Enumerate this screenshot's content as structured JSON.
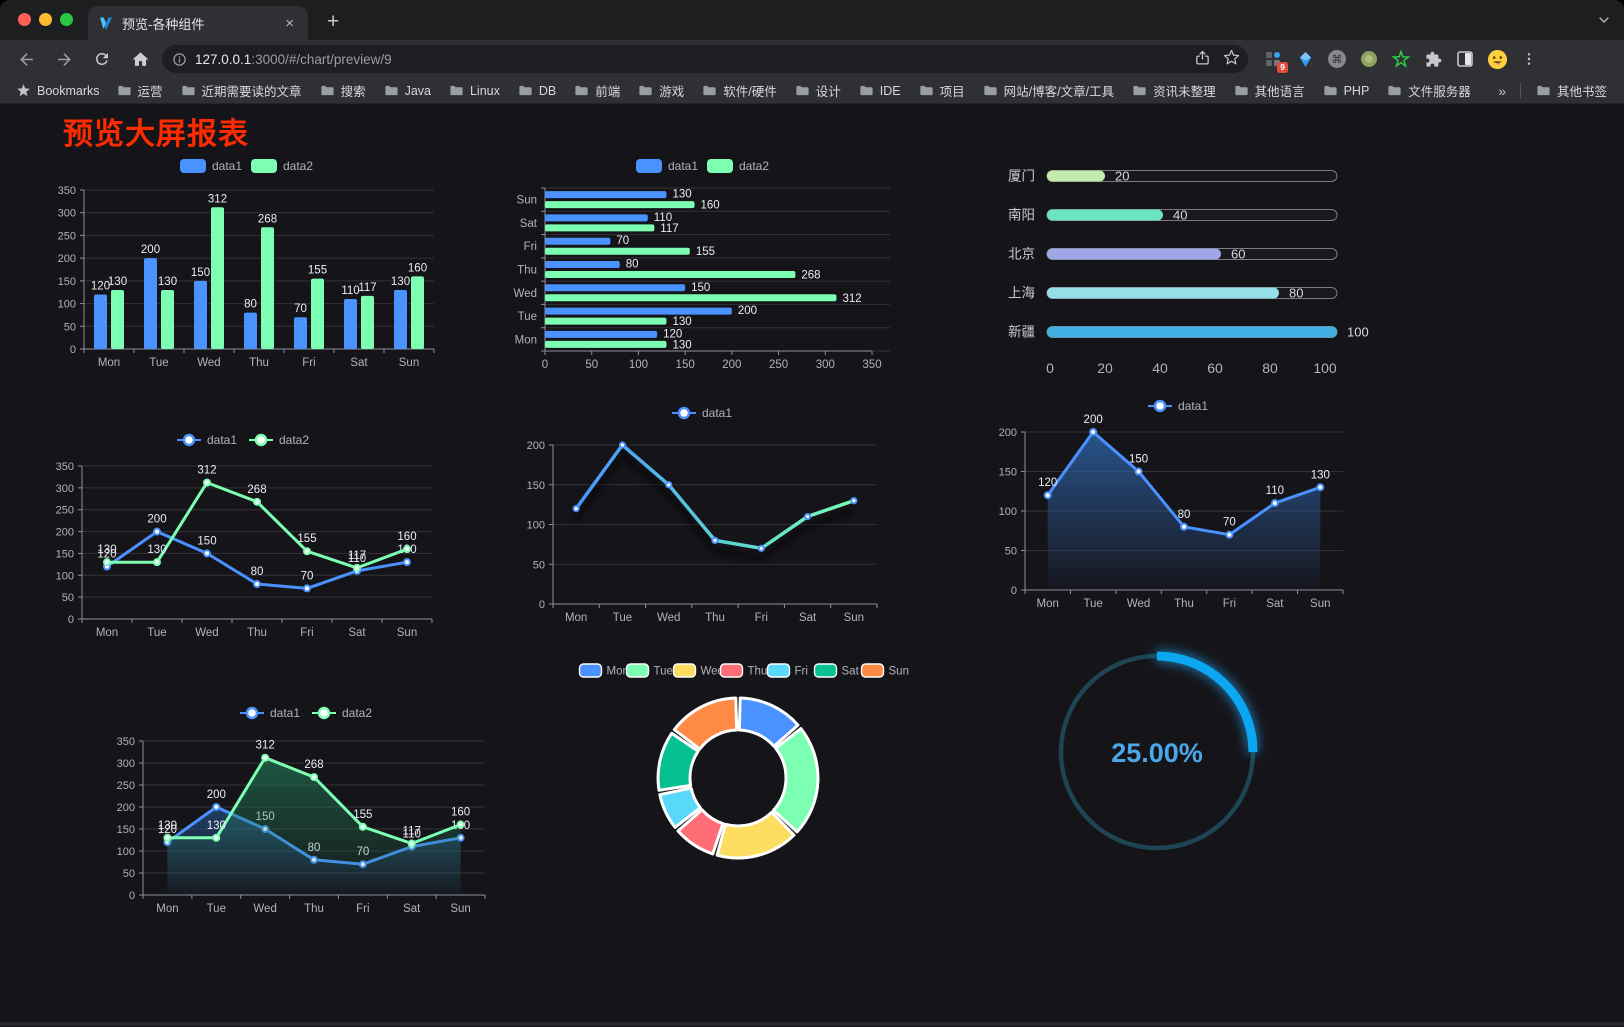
{
  "browser": {
    "tab_title": "预览-各种组件",
    "tab_close_glyph": "×",
    "new_tab_glyph": "+",
    "url": {
      "host": "127.0.0.1",
      "rest": ":3000/#/chart/preview/9"
    },
    "extensions_badge": "9",
    "bookmarks_bar": {
      "leading_label": "Bookmarks",
      "folders": [
        "运营",
        "近期需要读的文章",
        "搜索",
        "Java",
        "Linux",
        "DB",
        "前端",
        "游戏",
        "软件/硬件",
        "设计",
        "IDE",
        "项目",
        "网站/博客/文章/工具",
        "资讯未整理",
        "其他语言",
        "PHP",
        "文件服务器"
      ],
      "overflow_glyph": "»",
      "other_bookmarks_label": "其他书签"
    }
  },
  "page": {
    "title": "预览大屏报表",
    "title_color": "#fe2b00"
  },
  "theme": {
    "axis_label_color": "#b2b2c0",
    "axis_line_color": "#8f8f9e",
    "split_line_color": "rgba(255,255,255,0.13)",
    "value_label_color": "#ececf4",
    "data1_color": "#4992ff",
    "data2_color": "#7cffb2"
  },
  "chart_data": [
    {
      "type": "bar",
      "categories": [
        "Mon",
        "Tue",
        "Wed",
        "Thu",
        "Fri",
        "Sat",
        "Sun"
      ],
      "series": [
        {
          "name": "data1",
          "color": "#4992ff",
          "values": [
            120,
            200,
            150,
            80,
            70,
            110,
            130
          ]
        },
        {
          "name": "data2",
          "color": "#7cffb2",
          "values": [
            130,
            130,
            312,
            268,
            155,
            117,
            160
          ]
        }
      ],
      "ylim": [
        0,
        350
      ],
      "ytick_step": 50,
      "legend_position": "top",
      "grid": true
    },
    {
      "type": "bar-horizontal",
      "categories": [
        "Mon",
        "Tue",
        "Wed",
        "Thu",
        "Fri",
        "Sat",
        "Sun"
      ],
      "series": [
        {
          "name": "data1",
          "color": "#4992ff",
          "values": [
            120,
            200,
            150,
            80,
            70,
            110,
            130
          ]
        },
        {
          "name": "data2",
          "color": "#7cffb2",
          "values": [
            130,
            130,
            312,
            268,
            155,
            117,
            160
          ]
        }
      ],
      "xlim": [
        0,
        350
      ],
      "xticks": [
        0,
        50,
        100,
        150,
        200,
        250,
        300,
        350
      ],
      "legend_position": "top",
      "grid": true
    },
    {
      "type": "bar-pill",
      "rows": [
        {
          "label": "厦门",
          "value": 20,
          "color": "#c4ebad"
        },
        {
          "label": "南阳",
          "value": 40,
          "color": "#6be6c1"
        },
        {
          "label": "北京",
          "value": 60,
          "color": "#a0a7e6"
        },
        {
          "label": "上海",
          "value": 80,
          "color": "#96dee8"
        },
        {
          "label": "新疆",
          "value": 100,
          "color": "#3fb1e3"
        }
      ],
      "xlim": [
        0,
        100
      ],
      "xticks": [
        0,
        20,
        40,
        60,
        80,
        100
      ]
    },
    {
      "type": "line",
      "categories": [
        "Mon",
        "Tue",
        "Wed",
        "Thu",
        "Fri",
        "Sat",
        "Sun"
      ],
      "series": [
        {
          "name": "data1",
          "color": "#4992ff",
          "values": [
            120,
            200,
            150,
            80,
            70,
            110,
            130
          ]
        },
        {
          "name": "data2",
          "color": "#7cffb2",
          "values": [
            130,
            130,
            312,
            268,
            155,
            117,
            160
          ]
        }
      ],
      "ylim": [
        0,
        350
      ],
      "ytick_step": 50,
      "point_labels": true,
      "legend_position": "top"
    },
    {
      "type": "line",
      "categories": [
        "Mon",
        "Tue",
        "Wed",
        "Thu",
        "Fri",
        "Sat",
        "Sun"
      ],
      "series": [
        {
          "name": "data1",
          "gradient": [
            "#4992ff",
            "#58cfd8",
            "#7cffb2"
          ],
          "color": "#4992ff",
          "values": [
            120,
            200,
            150,
            80,
            70,
            110,
            130
          ]
        }
      ],
      "ylim": [
        0,
        200
      ],
      "ytick_step": 50,
      "point_labels": false,
      "shadow": true,
      "legend_position": "top"
    },
    {
      "type": "area",
      "categories": [
        "Mon",
        "Tue",
        "Wed",
        "Thu",
        "Fri",
        "Sat",
        "Sun"
      ],
      "series": [
        {
          "name": "data1",
          "color": "#4992ff",
          "area_from": "rgba(45,95,160,0.85)",
          "area_to": "rgba(45,95,160,0.03)",
          "values": [
            120,
            200,
            150,
            80,
            70,
            110,
            130
          ]
        }
      ],
      "ylim": [
        0,
        200
      ],
      "ytick_step": 50,
      "point_labels": true,
      "legend_position": "top"
    },
    {
      "type": "area",
      "categories": [
        "Mon",
        "Tue",
        "Wed",
        "Thu",
        "Fri",
        "Sat",
        "Sun"
      ],
      "series": [
        {
          "name": "data1",
          "color": "#4992ff",
          "area_from": "rgba(40,90,155,0.6)",
          "area_to": "rgba(40,90,155,0.03)",
          "values": [
            120,
            200,
            150,
            80,
            70,
            110,
            130
          ]
        },
        {
          "name": "data2",
          "color": "#7cffb2",
          "area_from": "rgba(35,130,90,0.6)",
          "area_to": "rgba(35,130,90,0.03)",
          "values": [
            130,
            130,
            312,
            268,
            155,
            117,
            160
          ]
        }
      ],
      "ylim": [
        0,
        350
      ],
      "ytick_step": 50,
      "point_labels": true,
      "legend_position": "top"
    },
    {
      "type": "donut",
      "items": [
        {
          "name": "Mon",
          "value": 120,
          "color": "#4992ff"
        },
        {
          "name": "Tue",
          "value": 200,
          "color": "#7cffb2"
        },
        {
          "name": "Wed",
          "value": 150,
          "color": "#fddd60"
        },
        {
          "name": "Thu",
          "value": 80,
          "color": "#ff6e76"
        },
        {
          "name": "Fri",
          "value": 70,
          "color": "#58d9f9"
        },
        {
          "name": "Sat",
          "value": 110,
          "color": "#05c091"
        },
        {
          "name": "Sun",
          "value": 130,
          "color": "#ff8a45"
        }
      ],
      "border_color": "#ffffff",
      "legend_position": "top"
    },
    {
      "type": "gauge-ring",
      "percent": 25,
      "value_label": "25.00%",
      "arc_color": "#0ba7f0",
      "track_color": "#1d4554",
      "text_color": "#4aa8ea"
    }
  ]
}
